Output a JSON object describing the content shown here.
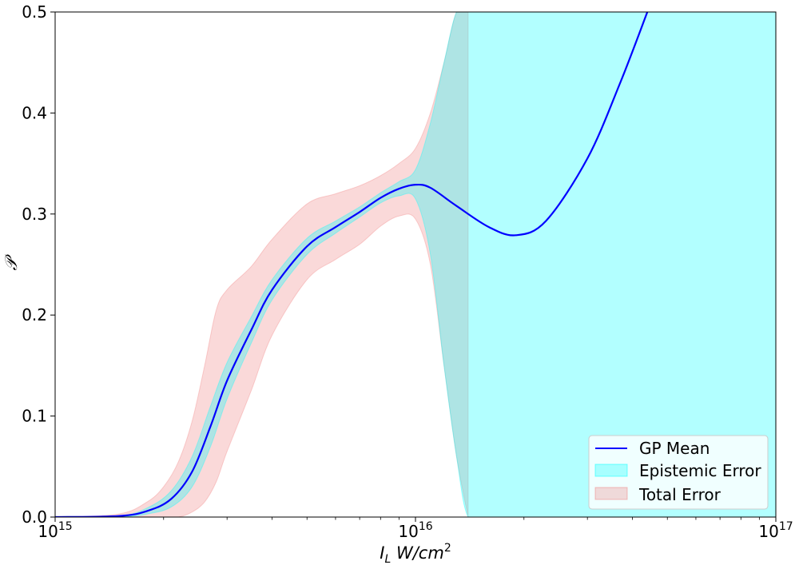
{
  "chart_data": {
    "type": "line",
    "xscale": "log",
    "xlim": [
      1000000000000000.0,
      1e+17
    ],
    "ylim": [
      0,
      0.5
    ],
    "xlabel": "I_L W/cm^2",
    "ylabel": "P",
    "x_ticks": [
      {
        "value": 1000000000000000.0,
        "base": "10",
        "exp": "15"
      },
      {
        "value": 1e+16,
        "base": "10",
        "exp": "16"
      },
      {
        "value": 1e+17,
        "base": "10",
        "exp": "17"
      }
    ],
    "y_ticks": [
      {
        "value": 0.0,
        "label": "0.0"
      },
      {
        "value": 0.1,
        "label": "0.1"
      },
      {
        "value": 0.2,
        "label": "0.2"
      },
      {
        "value": 0.3,
        "label": "0.3"
      },
      {
        "value": 0.4,
        "label": "0.4"
      },
      {
        "value": 0.5,
        "label": "0.5"
      }
    ],
    "legend_position": "lower-right",
    "series": [
      {
        "name": "GP Mean",
        "kind": "line",
        "color": "#0000ff",
        "x": [
          1000000000000000.0,
          1500000000000000.0,
          1800000000000000.0,
          2100000000000000.0,
          2400000000000000.0,
          2700000000000000.0,
          3000000000000000.0,
          3500000000000000.0,
          4000000000000000.0,
          5000000000000000.0,
          6000000000000000.0,
          7000000000000000.0,
          8000000000000000.0,
          9000000000000000.0,
          1e+16,
          1.1e+16,
          1.3e+16,
          1.6e+16,
          1.9e+16,
          2.3e+16,
          3e+16,
          3.7e+16,
          4.4e+16
        ],
        "y": [
          0.0,
          0.001,
          0.006,
          0.018,
          0.045,
          0.09,
          0.135,
          0.185,
          0.225,
          0.268,
          0.287,
          0.302,
          0.316,
          0.325,
          0.329,
          0.326,
          0.308,
          0.287,
          0.279,
          0.293,
          0.355,
          0.43,
          0.5
        ]
      },
      {
        "name": "Epistemic Error",
        "kind": "band",
        "color": "#00ffff",
        "opacity": 0.3,
        "x": [
          1000000000000000.0,
          1500000000000000.0,
          1800000000000000.0,
          2100000000000000.0,
          2400000000000000.0,
          2700000000000000.0,
          3000000000000000.0,
          3500000000000000.0,
          4000000000000000.0,
          5000000000000000.0,
          6000000000000000.0,
          7000000000000000.0,
          8000000000000000.0,
          9000000000000000.0,
          1e+16,
          1.1e+16,
          1.2e+16,
          1.3e+16,
          1.4e+16,
          1.6e+16,
          2e+16,
          3e+16,
          5e+16,
          1e+17
        ],
        "lower": [
          0.0,
          0.0,
          0.003,
          0.01,
          0.03,
          0.07,
          0.117,
          0.172,
          0.215,
          0.26,
          0.281,
          0.297,
          0.311,
          0.318,
          0.315,
          0.26,
          0.15,
          0.06,
          0.0,
          0.0,
          0.0,
          0.0,
          0.0,
          0.0
        ],
        "upper": [
          0.0,
          0.001,
          0.009,
          0.026,
          0.06,
          0.11,
          0.153,
          0.198,
          0.235,
          0.276,
          0.293,
          0.307,
          0.321,
          0.332,
          0.344,
          0.39,
          0.45,
          0.5,
          0.5,
          0.5,
          0.5,
          0.5,
          0.5,
          0.5
        ]
      },
      {
        "name": "Total Error",
        "kind": "band",
        "color": "#f08080",
        "opacity": 0.3,
        "x": [
          1000000000000000.0,
          1500000000000000.0,
          1800000000000000.0,
          2000000000000000.0,
          2200000000000000.0,
          2400000000000000.0,
          2600000000000000.0,
          2800000000000000.0,
          3000000000000000.0,
          3500000000000000.0,
          4000000000000000.0,
          5000000000000000.0,
          6000000000000000.0,
          7000000000000000.0,
          8000000000000000.0,
          9000000000000000.0,
          1e+16,
          1.1e+16,
          1.2e+16,
          1.3e+16,
          1.4e+16
        ],
        "lower": [
          0.0,
          0.0,
          0.0,
          0.0,
          0.0,
          0.005,
          0.015,
          0.035,
          0.065,
          0.125,
          0.18,
          0.235,
          0.255,
          0.27,
          0.288,
          0.298,
          0.295,
          0.25,
          0.15,
          0.06,
          0.0
        ],
        "upper": [
          0.0,
          0.003,
          0.015,
          0.03,
          0.055,
          0.095,
          0.15,
          0.205,
          0.225,
          0.248,
          0.275,
          0.31,
          0.32,
          0.328,
          0.338,
          0.35,
          0.365,
          0.4,
          0.45,
          0.5,
          0.5
        ]
      }
    ]
  },
  "legend": {
    "items": [
      {
        "label": "GP Mean"
      },
      {
        "label": "Epistemic Error"
      },
      {
        "label": "Total Error"
      }
    ]
  }
}
